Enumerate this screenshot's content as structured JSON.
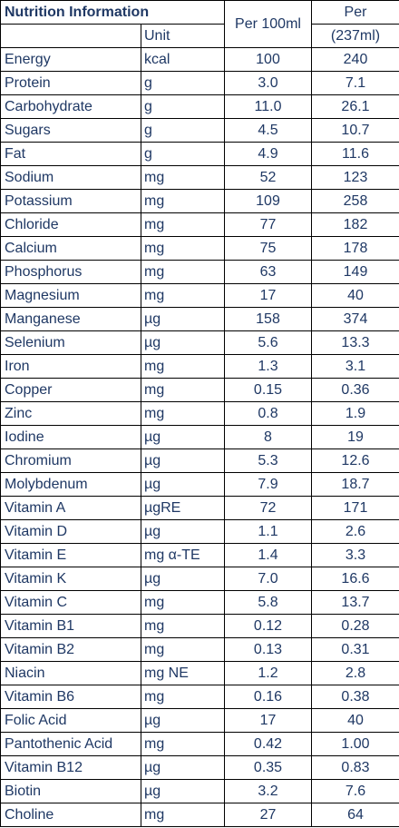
{
  "header": {
    "title": "Nutrition Information",
    "unit_label": "Unit",
    "per100_label": "Per 100ml",
    "perserving_line1": "Per",
    "perserving_line2": "(237ml)"
  },
  "rows": [
    {
      "name": "Energy",
      "unit": "kcal",
      "per100": "100",
      "perserving": "240"
    },
    {
      "name": "Protein",
      "unit": "g",
      "per100": "3.0",
      "perserving": "7.1"
    },
    {
      "name": "Carbohydrate",
      "unit": "g",
      "per100": "11.0",
      "perserving": "26.1"
    },
    {
      "name": "Sugars",
      "unit": "g",
      "per100": "4.5",
      "perserving": "10.7"
    },
    {
      "name": "Fat",
      "unit": "g",
      "per100": "4.9",
      "perserving": "11.6"
    },
    {
      "name": "Sodium",
      "unit": "mg",
      "per100": "52",
      "perserving": "123"
    },
    {
      "name": "Potassium",
      "unit": "mg",
      "per100": "109",
      "perserving": "258"
    },
    {
      "name": "Chloride",
      "unit": "mg",
      "per100": "77",
      "perserving": "182"
    },
    {
      "name": "Calcium",
      "unit": "mg",
      "per100": "75",
      "perserving": "178"
    },
    {
      "name": "Phosphorus",
      "unit": "mg",
      "per100": "63",
      "perserving": "149"
    },
    {
      "name": "Magnesium",
      "unit": "mg",
      "per100": "17",
      "perserving": "40"
    },
    {
      "name": "Manganese",
      "unit": "µg",
      "per100": "158",
      "perserving": "374"
    },
    {
      "name": "Selenium",
      "unit": "µg",
      "per100": "5.6",
      "perserving": "13.3"
    },
    {
      "name": "Iron",
      "unit": "mg",
      "per100": "1.3",
      "perserving": "3.1"
    },
    {
      "name": "Copper",
      "unit": "mg",
      "per100": "0.15",
      "perserving": "0.36"
    },
    {
      "name": "Zinc",
      "unit": "mg",
      "per100": "0.8",
      "perserving": "1.9"
    },
    {
      "name": "Iodine",
      "unit": "µg",
      "per100": "8",
      "perserving": "19"
    },
    {
      "name": "Chromium",
      "unit": "µg",
      "per100": "5.3",
      "perserving": "12.6"
    },
    {
      "name": "Molybdenum",
      "unit": "µg",
      "per100": "7.9",
      "perserving": "18.7"
    },
    {
      "name": "Vitamin A",
      "unit": "µgRE",
      "per100": "72",
      "perserving": "171"
    },
    {
      "name": "Vitamin D",
      "unit": "µg",
      "per100": "1.1",
      "perserving": "2.6"
    },
    {
      "name": "Vitamin E",
      "unit": "mg α-TE",
      "per100": "1.4",
      "perserving": "3.3"
    },
    {
      "name": "Vitamin K",
      "unit": "µg",
      "per100": "7.0",
      "perserving": "16.6"
    },
    {
      "name": "Vitamin C",
      "unit": "mg",
      "per100": "5.8",
      "perserving": "13.7"
    },
    {
      "name": "Vitamin B1",
      "unit": "mg",
      "per100": "0.12",
      "perserving": "0.28"
    },
    {
      "name": "Vitamin B2",
      "unit": "mg",
      "per100": "0.13",
      "perserving": "0.31"
    },
    {
      "name": "Niacin",
      "unit": "mg NE",
      "per100": "1.2",
      "perserving": "2.8"
    },
    {
      "name": "Vitamin B6",
      "unit": "mg",
      "per100": "0.16",
      "perserving": "0.38"
    },
    {
      "name": "Folic Acid",
      "unit": "µg",
      "per100": "17",
      "perserving": "40"
    },
    {
      "name": "Pantothenic Acid",
      "unit": "mg",
      "per100": "0.42",
      "perserving": "1.00"
    },
    {
      "name": "Vitamin B12",
      "unit": "µg",
      "per100": "0.35",
      "perserving": "0.83"
    },
    {
      "name": "Biotin",
      "unit": "µg",
      "per100": "3.2",
      "perserving": "7.6"
    },
    {
      "name": "Choline",
      "unit": "mg",
      "per100": "27",
      "perserving": "64"
    }
  ],
  "colors": {
    "text": "#1f3864",
    "border": "#000000",
    "background": "#ffffff"
  }
}
